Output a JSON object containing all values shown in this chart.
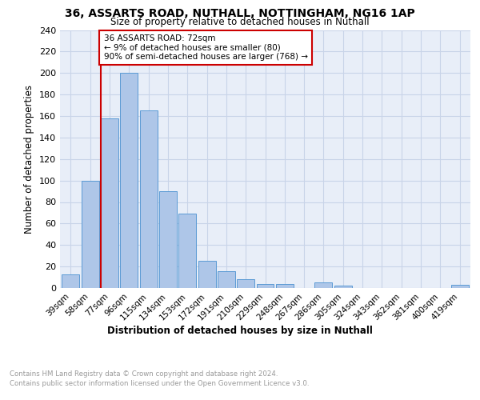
{
  "title_line1": "36, ASSARTS ROAD, NUTHALL, NOTTINGHAM, NG16 1AP",
  "title_line2": "Size of property relative to detached houses in Nuthall",
  "xlabel": "Distribution of detached houses by size in Nuthall",
  "ylabel": "Number of detached properties",
  "categories": [
    "39sqm",
    "58sqm",
    "77sqm",
    "96sqm",
    "115sqm",
    "134sqm",
    "153sqm",
    "172sqm",
    "191sqm",
    "210sqm",
    "229sqm",
    "248sqm",
    "267sqm",
    "286sqm",
    "305sqm",
    "324sqm",
    "343sqm",
    "362sqm",
    "381sqm",
    "400sqm",
    "419sqm"
  ],
  "values": [
    13,
    100,
    158,
    200,
    165,
    90,
    69,
    25,
    16,
    8,
    4,
    4,
    0,
    5,
    2,
    0,
    0,
    0,
    0,
    0,
    3
  ],
  "bar_color": "#aec6e8",
  "bar_edge_color": "#5b9bd5",
  "property_label": "36 ASSARTS ROAD: 72sqm",
  "annotation_line1": "← 9% of detached houses are smaller (80)",
  "annotation_line2": "90% of semi-detached houses are larger (768) →",
  "vline_color": "#cc0000",
  "vline_x_index": 2,
  "ylim": [
    0,
    240
  ],
  "yticks": [
    0,
    20,
    40,
    60,
    80,
    100,
    120,
    140,
    160,
    180,
    200,
    220,
    240
  ],
  "grid_color": "#c8d4e8",
  "bg_color": "#e8eef8",
  "footnote1": "Contains HM Land Registry data © Crown copyright and database right 2024.",
  "footnote2": "Contains public sector information licensed under the Open Government Licence v3.0."
}
